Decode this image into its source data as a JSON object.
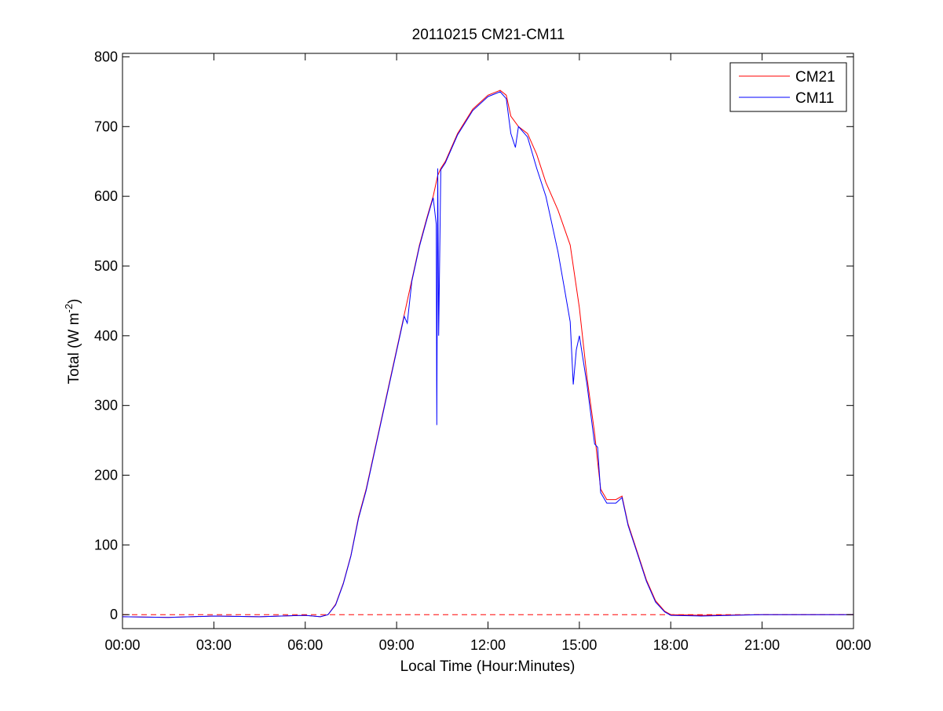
{
  "chart_data": {
    "type": "line",
    "title": "20110215 CM21-CM11",
    "xlabel": "Local Time (Hour:Minutes)",
    "ylabel": {
      "main": "Total (W m",
      "superscript": "-2",
      "close": ")"
    },
    "xlim": [
      "00:00",
      "24:00"
    ],
    "ylim": [
      -20,
      805
    ],
    "x_unit": "hours",
    "xticks": [
      0,
      3,
      6,
      9,
      12,
      15,
      18,
      21,
      24
    ],
    "xtick_labels": [
      "00:00",
      "03:00",
      "06:00",
      "09:00",
      "12:00",
      "15:00",
      "18:00",
      "21:00",
      "00:00"
    ],
    "yticks": [
      0,
      100,
      200,
      300,
      400,
      500,
      600,
      700,
      800
    ],
    "ytick_labels": [
      "0",
      "100",
      "200",
      "300",
      "400",
      "500",
      "600",
      "700",
      "800"
    ],
    "grid": false,
    "legend": {
      "placement": "top-right",
      "entries": [
        "CM21",
        "CM11"
      ]
    },
    "reference_line": {
      "y": 0,
      "style": "dashed",
      "color": "#ff0000"
    },
    "series": [
      {
        "name": "CM21",
        "color": "#ff0000",
        "x": [
          0,
          1.5,
          3,
          4.5,
          6,
          6.5,
          6.75,
          7,
          7.25,
          7.5,
          7.75,
          8,
          8.25,
          8.5,
          8.75,
          9,
          9.25,
          9.5,
          9.75,
          10,
          10.2,
          10.35,
          10.45,
          10.6,
          11,
          11.5,
          12,
          12.4,
          12.6,
          12.75,
          13,
          13.3,
          13.6,
          13.9,
          14.3,
          14.7,
          15,
          15.25,
          15.5,
          15.6,
          15.7,
          15.9,
          16.2,
          16.4,
          16.6,
          16.9,
          17.2,
          17.5,
          17.8,
          18,
          19,
          21,
          24
        ],
        "y": [
          -3,
          -4,
          -2,
          -3,
          -1,
          -3,
          0,
          15,
          45,
          85,
          140,
          180,
          230,
          280,
          330,
          380,
          430,
          480,
          530,
          570,
          600,
          630,
          640,
          650,
          690,
          725,
          745,
          752,
          745,
          715,
          700,
          690,
          660,
          620,
          580,
          530,
          440,
          340,
          260,
          220,
          180,
          165,
          165,
          170,
          130,
          90,
          50,
          20,
          5,
          0,
          -1,
          0,
          0
        ]
      },
      {
        "name": "CM11",
        "color": "#0000ff",
        "x": [
          0,
          1.5,
          3,
          4.5,
          6,
          6.5,
          6.75,
          7,
          7.25,
          7.5,
          7.75,
          8,
          8.25,
          8.5,
          8.75,
          9,
          9.25,
          9.35,
          9.5,
          9.75,
          10,
          10.2,
          10.3,
          10.32,
          10.35,
          10.38,
          10.45,
          10.6,
          11,
          11.5,
          12,
          12.4,
          12.6,
          12.75,
          12.9,
          13,
          13.3,
          13.6,
          13.9,
          14.1,
          14.3,
          14.5,
          14.7,
          14.8,
          14.9,
          15,
          15.25,
          15.5,
          15.6,
          15.7,
          15.9,
          16.2,
          16.4,
          16.6,
          16.9,
          17.2,
          17.5,
          17.8,
          18,
          19,
          21,
          24
        ],
        "y": [
          -3,
          -4,
          -2,
          -3,
          -1,
          -3,
          0,
          14,
          44,
          84,
          138,
          178,
          228,
          278,
          328,
          378,
          428,
          418,
          478,
          528,
          568,
          598,
          560,
          272,
          640,
          400,
          638,
          648,
          688,
          723,
          743,
          750,
          740,
          690,
          670,
          700,
          685,
          640,
          600,
          560,
          520,
          470,
          420,
          330,
          380,
          400,
          330,
          245,
          240,
          175,
          160,
          160,
          168,
          128,
          88,
          48,
          18,
          4,
          -1,
          -2,
          0,
          0
        ]
      }
    ]
  }
}
